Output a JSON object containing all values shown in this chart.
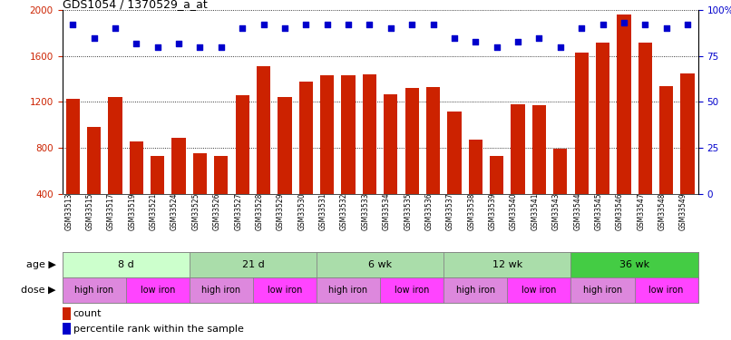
{
  "title": "GDS1054 / 1370529_a_at",
  "samples": [
    "GSM33513",
    "GSM33515",
    "GSM33517",
    "GSM33519",
    "GSM33521",
    "GSM33524",
    "GSM33525",
    "GSM33526",
    "GSM33527",
    "GSM33528",
    "GSM33529",
    "GSM33530",
    "GSM33531",
    "GSM33532",
    "GSM33533",
    "GSM33534",
    "GSM33535",
    "GSM33536",
    "GSM33537",
    "GSM33538",
    "GSM33539",
    "GSM33540",
    "GSM33541",
    "GSM33543",
    "GSM33544",
    "GSM33545",
    "GSM33546",
    "GSM33547",
    "GSM33548",
    "GSM33549"
  ],
  "bar_values": [
    1230,
    980,
    1240,
    860,
    730,
    890,
    750,
    730,
    1260,
    1510,
    1240,
    1380,
    1430,
    1430,
    1440,
    1270,
    1320,
    1330,
    1120,
    870,
    730,
    1180,
    1170,
    790,
    1630,
    1720,
    1960,
    1720,
    1340,
    1450
  ],
  "percentile_values": [
    92,
    85,
    90,
    82,
    80,
    82,
    80,
    80,
    90,
    92,
    90,
    92,
    92,
    92,
    92,
    90,
    92,
    92,
    85,
    83,
    80,
    83,
    85,
    80,
    90,
    92,
    93,
    92,
    90,
    92
  ],
  "bar_color": "#cc2200",
  "dot_color": "#0000cc",
  "ylim_left": [
    400,
    2000
  ],
  "ylim_right": [
    0,
    100
  ],
  "yticks_left": [
    400,
    800,
    1200,
    1600,
    2000
  ],
  "yticks_right": [
    0,
    25,
    50,
    75,
    100
  ],
  "yticklabels_right": [
    "0",
    "25",
    "50",
    "75",
    "100%"
  ],
  "age_groups": [
    {
      "label": "8 d",
      "start": 0,
      "end": 6,
      "color": "#ccffcc"
    },
    {
      "label": "21 d",
      "start": 6,
      "end": 12,
      "color": "#aaddaa"
    },
    {
      "label": "6 wk",
      "start": 12,
      "end": 18,
      "color": "#aaddaa"
    },
    {
      "label": "12 wk",
      "start": 18,
      "end": 24,
      "color": "#aaddaa"
    },
    {
      "label": "36 wk",
      "start": 24,
      "end": 30,
      "color": "#44cc44"
    }
  ],
  "dose_groups": [
    {
      "label": "high iron",
      "start": 0,
      "end": 3,
      "color": "#dd88dd"
    },
    {
      "label": "low iron",
      "start": 3,
      "end": 6,
      "color": "#ff44ff"
    },
    {
      "label": "high iron",
      "start": 6,
      "end": 9,
      "color": "#dd88dd"
    },
    {
      "label": "low iron",
      "start": 9,
      "end": 12,
      "color": "#ff44ff"
    },
    {
      "label": "high iron",
      "start": 12,
      "end": 15,
      "color": "#dd88dd"
    },
    {
      "label": "low iron",
      "start": 15,
      "end": 18,
      "color": "#ff44ff"
    },
    {
      "label": "high iron",
      "start": 18,
      "end": 21,
      "color": "#dd88dd"
    },
    {
      "label": "low iron",
      "start": 21,
      "end": 24,
      "color": "#ff44ff"
    },
    {
      "label": "high iron",
      "start": 24,
      "end": 27,
      "color": "#dd88dd"
    },
    {
      "label": "low iron",
      "start": 27,
      "end": 30,
      "color": "#ff44ff"
    }
  ],
  "legend_bar_color": "#cc2200",
  "legend_dot_color": "#0000cc",
  "legend_bar_label": "count",
  "legend_dot_label": "percentile rank within the sample",
  "age_label": "age",
  "dose_label": "dose",
  "background_color": "#ffffff"
}
